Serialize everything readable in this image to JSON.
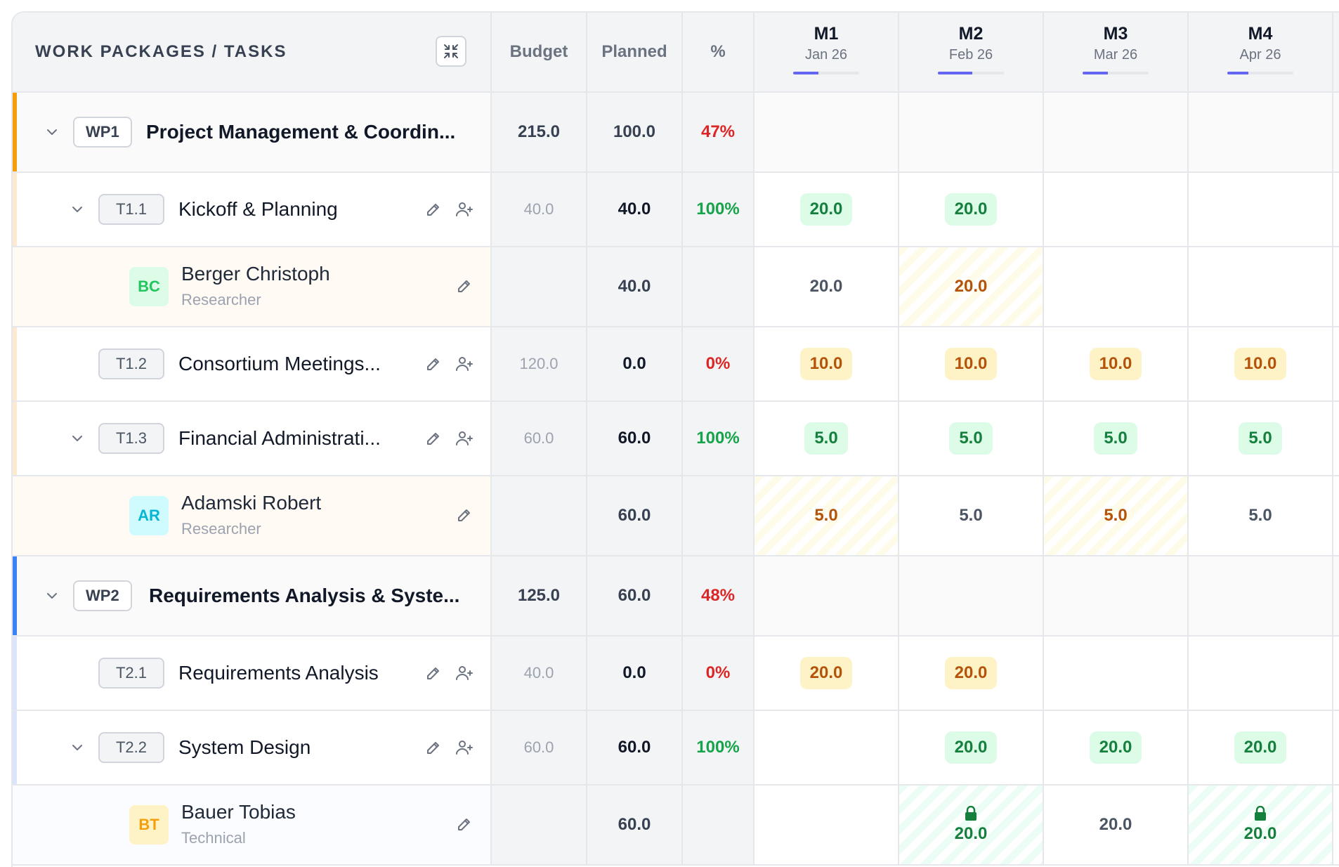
{
  "header": {
    "title": "WORK PACKAGES / TASKS",
    "budget": "Budget",
    "planned": "Planned",
    "pct": "%",
    "months": [
      {
        "code": "M1",
        "date": "Jan 26",
        "progress": 0.38
      },
      {
        "code": "M2",
        "date": "Feb 26",
        "progress": 0.52
      },
      {
        "code": "M3",
        "date": "Mar 26",
        "progress": 0.38
      },
      {
        "code": "M4",
        "date": "Apr 26",
        "progress": 0.32
      }
    ]
  },
  "rows": {
    "wp1": {
      "tag": "WP1",
      "title": "Project Management & Coordin...",
      "budget": "215.0",
      "planned": "100.0",
      "pct": "47%"
    },
    "t11": {
      "tag": "T1.1",
      "title": "Kickoff & Planning",
      "budget": "40.0",
      "planned": "40.0",
      "pct": "100%",
      "m1": "20.0",
      "m2": "20.0"
    },
    "r1": {
      "initials": "BC",
      "name": "Berger Christoph",
      "role": "Researcher",
      "planned": "40.0",
      "m1": "20.0",
      "m2": "20.0"
    },
    "t12": {
      "tag": "T1.2",
      "title": "Consortium Meetings...",
      "budget": "120.0",
      "planned": "0.0",
      "pct": "0%",
      "m1": "10.0",
      "m2": "10.0",
      "m3": "10.0",
      "m4": "10.0"
    },
    "t13": {
      "tag": "T1.3",
      "title": "Financial Administrati...",
      "budget": "60.0",
      "planned": "60.0",
      "pct": "100%",
      "m1": "5.0",
      "m2": "5.0",
      "m3": "5.0",
      "m4": "5.0"
    },
    "r2": {
      "initials": "AR",
      "name": "Adamski Robert",
      "role": "Researcher",
      "planned": "60.0",
      "m1": "5.0",
      "m2": "5.0",
      "m3": "5.0",
      "m4": "5.0"
    },
    "wp2": {
      "tag": "WP2",
      "title": "Requirements Analysis & Syste...",
      "budget": "125.0",
      "planned": "60.0",
      "pct": "48%"
    },
    "t21": {
      "tag": "T2.1",
      "title": "Requirements Analysis",
      "budget": "40.0",
      "planned": "0.0",
      "pct": "0%",
      "m1": "20.0",
      "m2": "20.0"
    },
    "t22": {
      "tag": "T2.2",
      "title": "System Design",
      "budget": "60.0",
      "planned": "60.0",
      "pct": "100%",
      "m2": "20.0",
      "m3": "20.0",
      "m4": "20.0"
    },
    "r3": {
      "initials": "BT",
      "name": "Bauer Tobias",
      "role": "Technical",
      "planned": "60.0",
      "m2": "20.0",
      "m3": "20.0",
      "m4": "20.0"
    }
  },
  "colors": {
    "wp1_accent": "#f59e0b",
    "wp1_light": "#fde8d0",
    "wp2_accent": "#3b82f6",
    "wp2_light": "#dbe4fb",
    "progress_fill": "#6366f1",
    "green": "#15803d",
    "amber": "#b45309",
    "red": "#dc2626"
  },
  "icons": {
    "collapse": "collapse-arrows-icon",
    "chevron": "chevron-down-icon",
    "edit": "pencil-icon",
    "add_person": "user-plus-icon",
    "lock": "lock-icon"
  }
}
